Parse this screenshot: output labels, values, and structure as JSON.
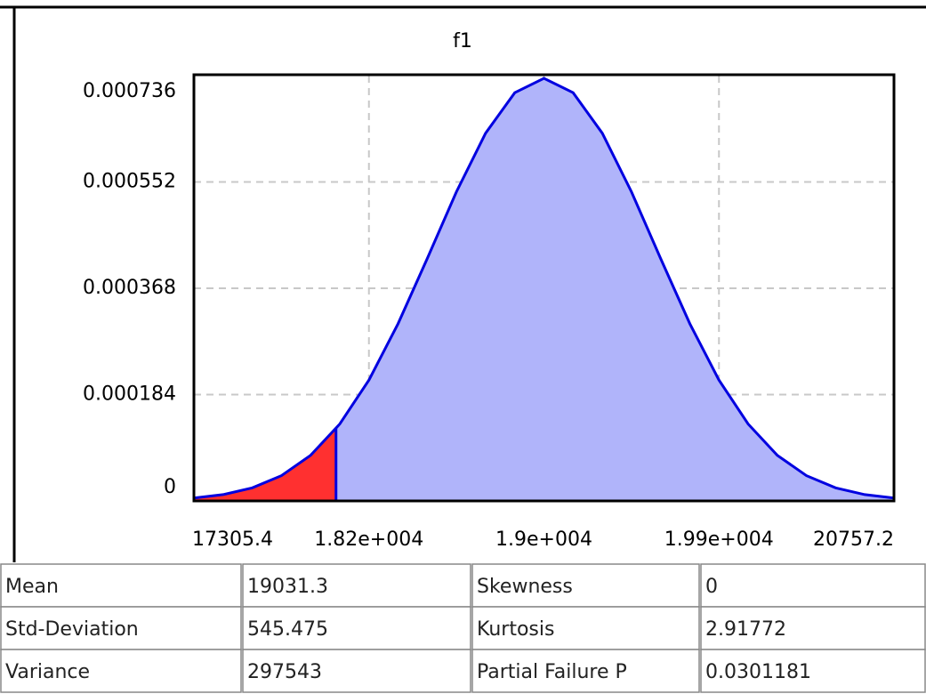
{
  "chart_data": {
    "type": "area",
    "title": "f1",
    "x": [
      17305.4,
      17449.2,
      17593.1,
      17736.9,
      17880.7,
      18024.5,
      18168.4,
      18312.2,
      18456.0,
      18599.8,
      18743.6,
      18887.5,
      19031.3,
      19175.1,
      19318.9,
      19462.7,
      19606.6,
      19750.4,
      19894.2,
      20038.1,
      20181.9,
      20325.7,
      20469.5,
      20613.4,
      20757.2
    ],
    "series": [
      {
        "color": "#0000e0",
        "fill": "#b0b4fa",
        "values": [
          4.9e-06,
          1.09e-05,
          2.26e-05,
          4.38e-05,
          7.9e-05,
          0.0001332,
          0.0002092,
          0.0003067,
          0.0004194,
          0.0005349,
          0.0006364,
          0.0007064,
          0.0007314,
          0.0007064,
          0.0006364,
          0.0005349,
          0.0004194,
          0.0003067,
          0.0002092,
          0.0001332,
          7.9e-05,
          4.38e-05,
          2.26e-05,
          1.09e-05,
          4.9e-06
        ]
      }
    ],
    "failure_threshold": 18006,
    "failure_color": "#ff3030",
    "xlim": [
      17305.4,
      20757.2
    ],
    "xticks": [
      17305.4,
      {
        "value": 18168.35,
        "label": "1.82e+004"
      },
      {
        "value": 19031.3,
        "label": "1.9e+004"
      },
      {
        "value": 19894.25,
        "label": "1.99e+004"
      },
      20757.2
    ],
    "ylim": [
      0,
      0.000736
    ],
    "yticks": [
      0,
      0.000184,
      0.000368,
      0.000552,
      0.000736
    ],
    "grid": true
  },
  "table": {
    "rows": [
      [
        "Mean",
        "19031.3",
        "Skewness",
        "0"
      ],
      [
        "Std-Deviation",
        "545.475",
        "Kurtosis",
        "2.91772"
      ],
      [
        "Variance",
        "297543",
        "Partial Failure P",
        "0.0301181"
      ]
    ]
  }
}
